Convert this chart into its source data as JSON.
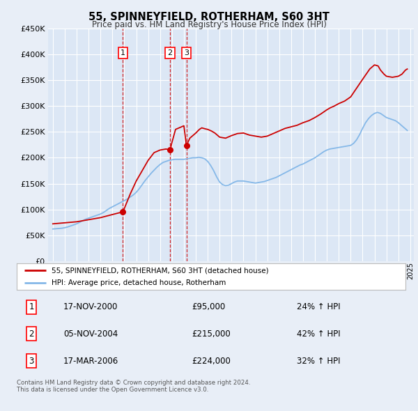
{
  "title": "55, SPINNEYFIELD, ROTHERHAM, S60 3HT",
  "subtitle": "Price paid vs. HM Land Registry's House Price Index (HPI)",
  "bg_color": "#e8eef7",
  "plot_bg_color": "#dce7f5",
  "grid_color": "#ffffff",
  "hpi_color": "#85b8e8",
  "price_color": "#cc0000",
  "ylim": [
    0,
    450000
  ],
  "yticks": [
    0,
    50000,
    100000,
    150000,
    200000,
    250000,
    300000,
    350000,
    400000,
    450000
  ],
  "xlim_start": 1994.6,
  "xlim_end": 2025.3,
  "transactions": [
    {
      "num": 1,
      "date": "17-NOV-2000",
      "year": 2000.88,
      "price": 95000,
      "pct": "24%",
      "dir": "↑"
    },
    {
      "num": 2,
      "date": "05-NOV-2004",
      "year": 2004.84,
      "price": 215000,
      "pct": "42%",
      "dir": "↑"
    },
    {
      "num": 3,
      "date": "17-MAR-2006",
      "year": 2006.21,
      "price": 224000,
      "pct": "32%",
      "dir": "↑"
    }
  ],
  "legend_label_price": "55, SPINNEYFIELD, ROTHERHAM, S60 3HT (detached house)",
  "legend_label_hpi": "HPI: Average price, detached house, Rotherham",
  "footnote": "Contains HM Land Registry data © Crown copyright and database right 2024.\nThis data is licensed under the Open Government Licence v3.0.",
  "hpi_data_years": [
    1995.0,
    1995.25,
    1995.5,
    1995.75,
    1996.0,
    1996.25,
    1996.5,
    1996.75,
    1997.0,
    1997.25,
    1997.5,
    1997.75,
    1998.0,
    1998.25,
    1998.5,
    1998.75,
    1999.0,
    1999.25,
    1999.5,
    1999.75,
    2000.0,
    2000.25,
    2000.5,
    2000.75,
    2001.0,
    2001.25,
    2001.5,
    2001.75,
    2002.0,
    2002.25,
    2002.5,
    2002.75,
    2003.0,
    2003.25,
    2003.5,
    2003.75,
    2004.0,
    2004.25,
    2004.5,
    2004.75,
    2005.0,
    2005.25,
    2005.5,
    2005.75,
    2006.0,
    2006.25,
    2006.5,
    2006.75,
    2007.0,
    2007.25,
    2007.5,
    2007.75,
    2008.0,
    2008.25,
    2008.5,
    2008.75,
    2009.0,
    2009.25,
    2009.5,
    2009.75,
    2010.0,
    2010.25,
    2010.5,
    2010.75,
    2011.0,
    2011.25,
    2011.5,
    2011.75,
    2012.0,
    2012.25,
    2012.5,
    2012.75,
    2013.0,
    2013.25,
    2013.5,
    2013.75,
    2014.0,
    2014.25,
    2014.5,
    2014.75,
    2015.0,
    2015.25,
    2015.5,
    2015.75,
    2016.0,
    2016.25,
    2016.5,
    2016.75,
    2017.0,
    2017.25,
    2017.5,
    2017.75,
    2018.0,
    2018.25,
    2018.5,
    2018.75,
    2019.0,
    2019.25,
    2019.5,
    2019.75,
    2020.0,
    2020.25,
    2020.5,
    2020.75,
    2021.0,
    2021.25,
    2021.5,
    2021.75,
    2022.0,
    2022.25,
    2022.5,
    2022.75,
    2023.0,
    2023.25,
    2023.5,
    2023.75,
    2024.0,
    2024.25,
    2024.5,
    2024.75
  ],
  "hpi_data_values": [
    62000,
    62500,
    63000,
    63500,
    64500,
    66000,
    68000,
    70000,
    72000,
    75000,
    78000,
    81000,
    83000,
    85000,
    87000,
    89000,
    91000,
    94000,
    98000,
    102000,
    105000,
    108000,
    111000,
    114000,
    117000,
    120000,
    124000,
    128000,
    133000,
    140000,
    148000,
    156000,
    163000,
    170000,
    176000,
    182000,
    187000,
    191000,
    193000,
    195000,
    196000,
    197000,
    197000,
    197000,
    197000,
    198000,
    199000,
    200000,
    200000,
    201000,
    200000,
    198000,
    193000,
    185000,
    175000,
    163000,
    153000,
    148000,
    146000,
    147000,
    150000,
    153000,
    155000,
    155000,
    155000,
    154000,
    153000,
    152000,
    151000,
    152000,
    153000,
    154000,
    156000,
    158000,
    160000,
    162000,
    165000,
    168000,
    171000,
    174000,
    177000,
    180000,
    183000,
    186000,
    188000,
    191000,
    194000,
    197000,
    200000,
    204000,
    208000,
    212000,
    215000,
    217000,
    218000,
    219000,
    220000,
    221000,
    222000,
    223000,
    224000,
    228000,
    235000,
    245000,
    257000,
    268000,
    276000,
    282000,
    286000,
    288000,
    286000,
    282000,
    278000,
    276000,
    274000,
    272000,
    268000,
    263000,
    258000,
    253000
  ],
  "price_data_years": [
    1995.0,
    1995.5,
    1996.0,
    1996.5,
    1997.0,
    1997.5,
    1998.0,
    1998.5,
    1999.0,
    1999.5,
    2000.0,
    2000.5,
    2000.88,
    2001.5,
    2002.0,
    2002.5,
    2003.0,
    2003.5,
    2004.0,
    2004.5,
    2004.84,
    2005.0,
    2005.3,
    2005.6,
    2006.0,
    2006.21,
    2006.5,
    2007.0,
    2007.3,
    2007.5,
    2007.8,
    2008.0,
    2008.3,
    2008.6,
    2009.0,
    2009.5,
    2010.0,
    2010.5,
    2011.0,
    2011.5,
    2012.0,
    2012.5,
    2013.0,
    2013.5,
    2014.0,
    2014.5,
    2015.0,
    2015.5,
    2016.0,
    2016.5,
    2017.0,
    2017.5,
    2018.0,
    2018.3,
    2018.6,
    2019.0,
    2019.5,
    2020.0,
    2020.5,
    2021.0,
    2021.3,
    2021.6,
    2022.0,
    2022.3,
    2022.5,
    2022.8,
    2023.0,
    2023.5,
    2024.0,
    2024.3,
    2024.6,
    2024.75
  ],
  "price_data_values": [
    72000,
    73000,
    74000,
    75000,
    76000,
    78000,
    80000,
    82000,
    84000,
    87000,
    90000,
    93000,
    95000,
    130000,
    155000,
    175000,
    195000,
    210000,
    215000,
    217000,
    215000,
    230000,
    255000,
    258000,
    262000,
    224000,
    238000,
    248000,
    255000,
    258000,
    256000,
    255000,
    252000,
    248000,
    240000,
    238000,
    243000,
    247000,
    248000,
    244000,
    242000,
    240000,
    242000,
    247000,
    252000,
    257000,
    260000,
    263000,
    268000,
    272000,
    278000,
    285000,
    293000,
    297000,
    300000,
    305000,
    310000,
    318000,
    335000,
    352000,
    362000,
    372000,
    380000,
    378000,
    370000,
    362000,
    358000,
    356000,
    358000,
    362000,
    370000,
    372000
  ]
}
